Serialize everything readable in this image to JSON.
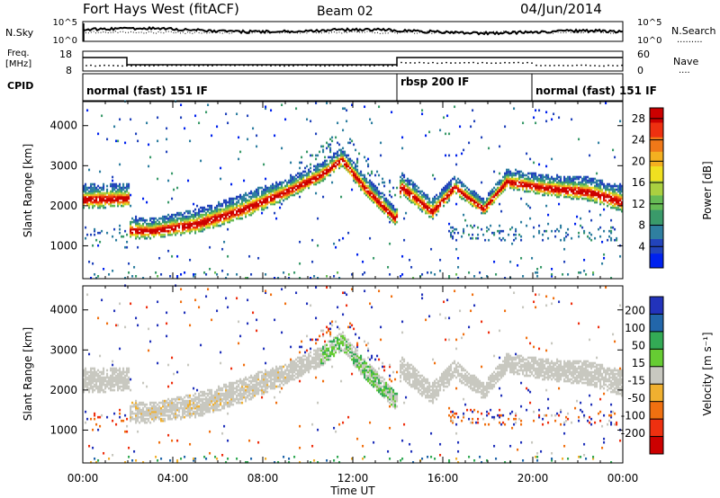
{
  "header": {
    "station": "Fort Hays West (fitACF)",
    "beam": "Beam 02",
    "date": "04/Jun/2014"
  },
  "noise_panel": {
    "left_label": "N.Sky",
    "right_label": "N.Search",
    "left_ticks": [
      "10^5",
      "10^0"
    ],
    "right_ticks": [
      "10^5",
      "10^0"
    ]
  },
  "freq_panel": {
    "left_label_1": "Freq.",
    "left_label_2": "[MHz]",
    "right_label": "Nave",
    "left_ticks": [
      "18",
      "8"
    ],
    "right_ticks": [
      "60",
      "0"
    ]
  },
  "cpid": {
    "label": "CPID",
    "modes": [
      {
        "name": "normal (fast) 151 IF",
        "start_hour": 0,
        "end_hour": 14
      },
      {
        "name": "rbsp 200 IF",
        "start_hour": 14,
        "end_hour": 20
      },
      {
        "name": "normal (fast) 151 IF",
        "start_hour": 20,
        "end_hour": 24
      }
    ]
  },
  "chart_data": [
    {
      "type": "heatmap",
      "parameter": "Power",
      "ylabel": "Slant Range [km]",
      "xlabel": "Time UT",
      "x_ticks": [
        "00:00",
        "04:00",
        "08:00",
        "12:00",
        "16:00",
        "20:00",
        "00:00"
      ],
      "y_ticks": [
        1000,
        2000,
        3000,
        4000
      ],
      "xlim_hours": [
        0,
        24
      ],
      "ylim_km": [
        180,
        4600
      ],
      "colorbar": {
        "label": "Power [dB]",
        "ticks": [
          4,
          8,
          12,
          16,
          20,
          24,
          28
        ],
        "range": [
          0,
          30
        ],
        "colors": [
          "#0022ee",
          "#2244bb",
          "#2f7fa0",
          "#3a9a6a",
          "#66bb55",
          "#aad040",
          "#f0e020",
          "#f4b020",
          "#f07818",
          "#ee3010",
          "#cc0000"
        ]
      },
      "echo_band": [
        {
          "hour": 0.0,
          "center_km": 2220,
          "width_km": 480
        },
        {
          "hour": 2.0,
          "center_km": 2250,
          "width_km": 480
        },
        {
          "hour": 2.05,
          "center_km": 1450,
          "width_km": 450
        },
        {
          "hour": 3.0,
          "center_km": 1420,
          "width_km": 400
        },
        {
          "hour": 5.0,
          "center_km": 1600,
          "width_km": 480
        },
        {
          "hour": 7.0,
          "center_km": 1950,
          "width_km": 500
        },
        {
          "hour": 9.0,
          "center_km": 2400,
          "width_km": 420
        },
        {
          "hour": 10.5,
          "center_km": 2800,
          "width_km": 400
        },
        {
          "hour": 11.5,
          "center_km": 3200,
          "width_km": 380
        },
        {
          "hour": 12.5,
          "center_km": 2500,
          "width_km": 400
        },
        {
          "hour": 13.9,
          "center_km": 1700,
          "width_km": 380
        },
        {
          "hour": 14.1,
          "center_km": 2550,
          "width_km": 450
        },
        {
          "hour": 15.5,
          "center_km": 1900,
          "width_km": 420
        },
        {
          "hour": 16.5,
          "center_km": 2500,
          "width_km": 350
        },
        {
          "hour": 17.8,
          "center_km": 1950,
          "width_km": 320
        },
        {
          "hour": 18.8,
          "center_km": 2650,
          "width_km": 380
        },
        {
          "hour": 20.5,
          "center_km": 2500,
          "width_km": 420
        },
        {
          "hour": 22.5,
          "center_km": 2400,
          "width_km": 480
        },
        {
          "hour": 24.0,
          "center_km": 2150,
          "width_km": 520
        }
      ]
    },
    {
      "type": "heatmap",
      "parameter": "Velocity",
      "ylabel": "Slant Range [km]",
      "xlabel": "Time UT",
      "x_ticks": [
        "00:00",
        "04:00",
        "08:00",
        "12:00",
        "16:00",
        "20:00",
        "00:00"
      ],
      "y_ticks": [
        1000,
        2000,
        3000,
        4000
      ],
      "xlim_hours": [
        0,
        24
      ],
      "ylim_km": [
        180,
        4600
      ],
      "colorbar": {
        "label": "Velocity [m s⁻¹]",
        "ticks": [
          200,
          100,
          50,
          15,
          -15,
          -50,
          -100,
          -200
        ],
        "colors": [
          "#2233bb",
          "#2266aa",
          "#33aa55",
          "#66cc33",
          "#c8c8c0",
          "#f0b030",
          "#f07010",
          "#ee3010",
          "#cc0000"
        ]
      }
    }
  ]
}
